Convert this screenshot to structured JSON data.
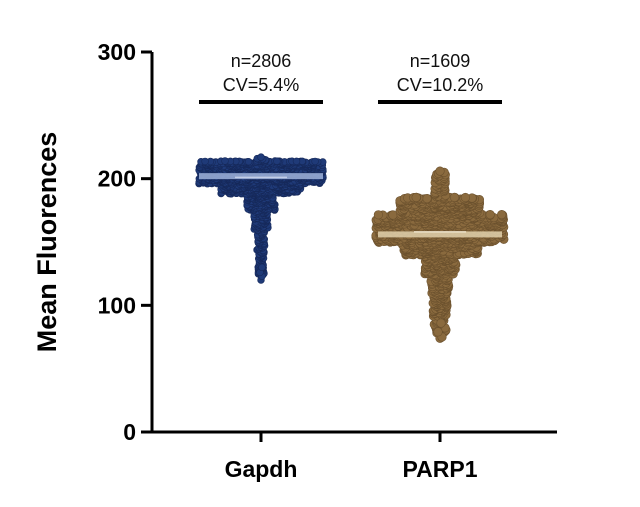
{
  "chart_data": {
    "type": "scatter",
    "subtype": "beeswarm",
    "ylabel": "Mean Fluorences",
    "ylim": [
      0,
      300
    ],
    "yticks": [
      0,
      100,
      200,
      300
    ],
    "categories": [
      "Gapdh",
      "PARP1"
    ],
    "series": [
      {
        "name": "Gapdh",
        "color": "#1f3a78",
        "mean": 202,
        "median": 201,
        "min": 120,
        "max": 217,
        "bulk_range": [
          190,
          212
        ],
        "annotation_n": "n=2806",
        "annotation_cv": "CV=5.4%"
      },
      {
        "name": "PARP1",
        "color": "#8a6a3e",
        "mean": 156,
        "median": 158,
        "min": 74,
        "max": 206,
        "bulk_range": [
          135,
          172
        ],
        "annotation_n": "n=1609",
        "annotation_cv": "CV=10.2%"
      }
    ],
    "grid": false,
    "legend": "none"
  }
}
